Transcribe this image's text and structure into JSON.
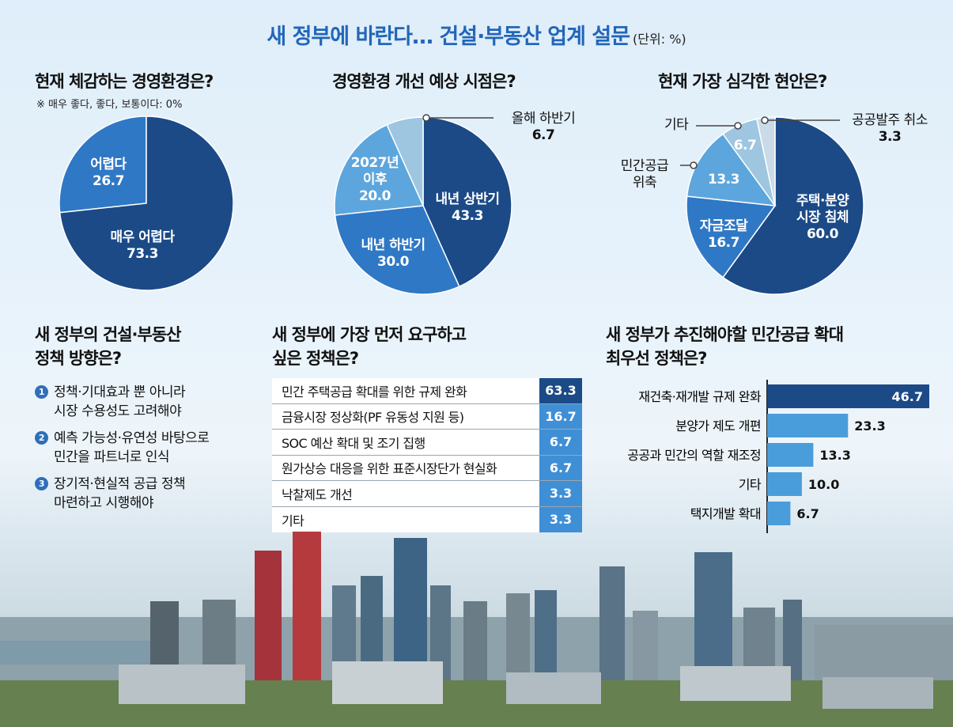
{
  "header": {
    "title": "새 정부에 바란다… 건설·부동산 업계 설문",
    "unit": "(단위: %)"
  },
  "colors": {
    "dark": "#1b4a87",
    "mid": "#2f78c5",
    "light": "#5da6dd",
    "pale": "#9fc6e0",
    "paler": "#c9dbe6",
    "bar": "#4a9ddb",
    "barTop": "#1b4a87"
  },
  "chart_data": [
    {
      "type": "pie",
      "title": "현재 체감하는 경영환경은?",
      "note": "※ 매우 좋다, 좋다, 보통이다: 0%",
      "slices": [
        {
          "label": "어렵다",
          "value": 26.7
        },
        {
          "label": "매우 어렵다",
          "value": 73.3
        }
      ]
    },
    {
      "type": "pie",
      "title": "경영환경 개선 예상 시점은?",
      "slices": [
        {
          "label": "내년 상반기",
          "value": 43.3
        },
        {
          "label": "내년 하반기",
          "value": 30.0
        },
        {
          "label": "2027년 이후",
          "value": 20.0
        },
        {
          "label": "올해 하반기",
          "value": 6.7
        }
      ]
    },
    {
      "type": "pie",
      "title": "현재 가장 심각한 현안은?",
      "slices": [
        {
          "label": "주택·분양 시장 침체",
          "value": 60.0
        },
        {
          "label": "자금조달",
          "value": 16.7
        },
        {
          "label": "민간공급 위축",
          "value": 13.3
        },
        {
          "label": "기타",
          "value": 6.7
        },
        {
          "label": "공공발주 취소",
          "value": 3.3
        }
      ]
    },
    {
      "type": "table",
      "title": "새 정부에 가장 먼저 요구하고 싶은 정책은?",
      "rows": [
        {
          "label": "민간 주택공급 확대를 위한 규제 완화",
          "value": 63.3
        },
        {
          "label": "금융시장 정상화(PF 유동성 지원 등)",
          "value": 16.7
        },
        {
          "label": "SOC 예산 확대 및 조기 집행",
          "value": 6.7
        },
        {
          "label": "원가상승 대응을 위한 표준시장단가 현실화",
          "value": 6.7
        },
        {
          "label": "낙찰제도 개선",
          "value": 3.3
        },
        {
          "label": "기타",
          "value": 3.3
        }
      ]
    },
    {
      "type": "bar",
      "orientation": "horizontal",
      "title": "새 정부가 추진해야할 민간공급 확대 최우선 정책은?",
      "categories": [
        "재건축·재개발 규제 완화",
        "분양가 제도 개편",
        "공공과 민간의 역할 재조정",
        "기타",
        "택지개발 확대"
      ],
      "values": [
        46.7,
        23.3,
        13.3,
        10.0,
        6.7
      ],
      "xlim": [
        0,
        46.7
      ]
    }
  ],
  "labels": {
    "pie1": {
      "s0_line1": "어렵다",
      "s0_line2": "26.7",
      "s1_line1": "매우 어렵다",
      "s1_line2": "73.3"
    },
    "pie2": {
      "s0_line1": "내년 상반기",
      "s0_line2": "43.3",
      "s1_line1": "내년 하반기",
      "s1_line2": "30.0",
      "s2_line1": "2027년",
      "s2_line2": "이후",
      "s2_line3": "20.0",
      "s3_line1": "올해 하반기",
      "s3_line2": "6.7"
    },
    "pie3": {
      "s0_line1": "주택·분양",
      "s0_line2": "시장 침체",
      "s0_line3": "60.0",
      "s1_line1": "자금조달",
      "s1_line2": "16.7",
      "s2_val": "13.3",
      "s2_line1": "민간공급",
      "s2_line2": "위축",
      "s3_val": "6.7",
      "s3_name": "기타",
      "s4_line1": "공공발주 취소",
      "s4_line2": "3.3"
    }
  },
  "direction": {
    "title_line1": "새 정부의 건설·부동산",
    "title_line2": "정책 방향은?",
    "items": [
      {
        "num": "1",
        "line1": "정책·기대효과 뿐 아니라",
        "line2": "시장 수용성도 고려해야"
      },
      {
        "num": "2",
        "line1": "예측 가능성·유연성 바탕으로",
        "line2": "민간을 파트너로 인식"
      },
      {
        "num": "3",
        "line1": "장기적·현실적 공급 정책",
        "line2": "마련하고 시행해야"
      }
    ]
  },
  "table_title": {
    "line1": "새 정부에 가장 먼저 요구하고",
    "line2": "싶은 정책은?"
  },
  "bar_title": {
    "line1": "새 정부가 추진해야할 민간공급 확대",
    "line2": "최우선 정책은?"
  }
}
